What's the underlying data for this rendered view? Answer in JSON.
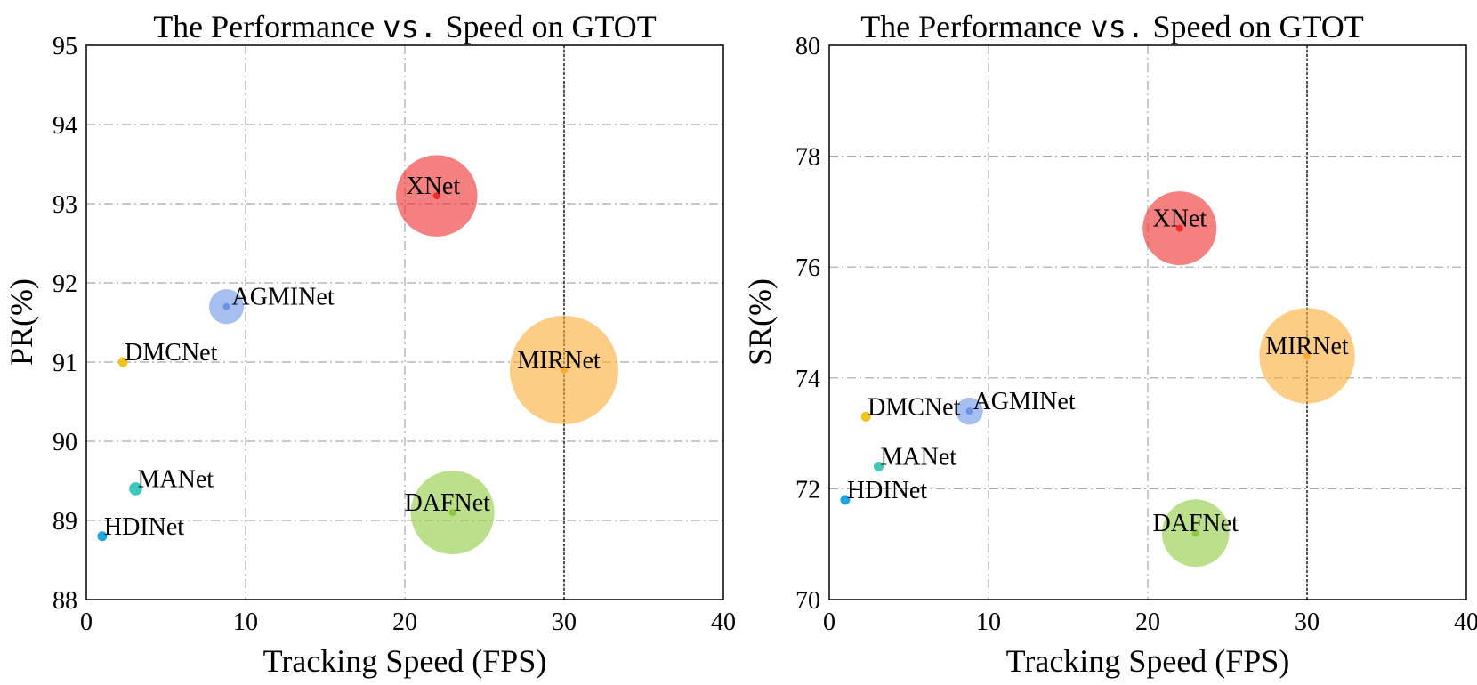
{
  "chart_data": [
    {
      "type": "scatter",
      "title": {
        "prefix": "The Performance ",
        "vs": "vs.",
        "suffix": " Speed on GTOT"
      },
      "xlabel": "Tracking Speed (FPS)",
      "ylabel": "PR(%)",
      "xlim": [
        0,
        40
      ],
      "ylim": [
        88,
        95
      ],
      "xticks": [
        0,
        10,
        20,
        30,
        40
      ],
      "yticks": [
        88,
        89,
        90,
        91,
        92,
        93,
        94,
        95
      ],
      "grid": true,
      "reference_x": 30,
      "points": [
        {
          "name": "XNet",
          "x": 22,
          "y": 93.1,
          "size": 0.75,
          "color": "#ef2b2b"
        },
        {
          "name": "AGMINet",
          "x": 8.8,
          "y": 91.7,
          "size": 0.32,
          "color": "#6c93e6"
        },
        {
          "name": "DMCNet",
          "x": 2.3,
          "y": 91.0,
          "size": 0.09,
          "color": "#f0c419"
        },
        {
          "name": "MIRNet",
          "x": 30,
          "y": 90.9,
          "size": 1.0,
          "color": "#fbab33"
        },
        {
          "name": "MANet",
          "x": 3.1,
          "y": 89.4,
          "size": 0.12,
          "color": "#3cc9bd"
        },
        {
          "name": "DAFNet",
          "x": 23,
          "y": 89.1,
          "size": 0.77,
          "color": "#8ec93e"
        },
        {
          "name": "HDINet",
          "x": 1.0,
          "y": 88.8,
          "size": 0.09,
          "color": "#20a5e0"
        }
      ]
    },
    {
      "type": "scatter",
      "title": {
        "prefix": "The Performance ",
        "vs": "vs.",
        "suffix": " Speed on GTOT"
      },
      "xlabel": "Tracking Speed (FPS)",
      "ylabel": "SR(%)",
      "xlim": [
        0,
        40
      ],
      "ylim": [
        70,
        80
      ],
      "xticks": [
        0,
        10,
        20,
        30,
        40
      ],
      "yticks": [
        70,
        72,
        74,
        76,
        78,
        80
      ],
      "grid": true,
      "reference_x": 30,
      "points": [
        {
          "name": "XNet",
          "x": 22,
          "y": 76.7,
          "size": 0.68,
          "color": "#ef2b2b"
        },
        {
          "name": "MIRNet",
          "x": 30,
          "y": 74.4,
          "size": 0.88,
          "color": "#fbab33"
        },
        {
          "name": "DMCNet",
          "x": 2.3,
          "y": 73.3,
          "size": 0.09,
          "color": "#f0c419"
        },
        {
          "name": "AGMINet",
          "x": 8.8,
          "y": 73.4,
          "size": 0.25,
          "color": "#6c93e6"
        },
        {
          "name": "MANet",
          "x": 3.1,
          "y": 72.4,
          "size": 0.09,
          "color": "#3cc9bd"
        },
        {
          "name": "HDINet",
          "x": 1.0,
          "y": 71.8,
          "size": 0.09,
          "color": "#20a5e0"
        },
        {
          "name": "DAFNet",
          "x": 23,
          "y": 71.2,
          "size": 0.62,
          "color": "#8ec93e"
        }
      ]
    }
  ]
}
